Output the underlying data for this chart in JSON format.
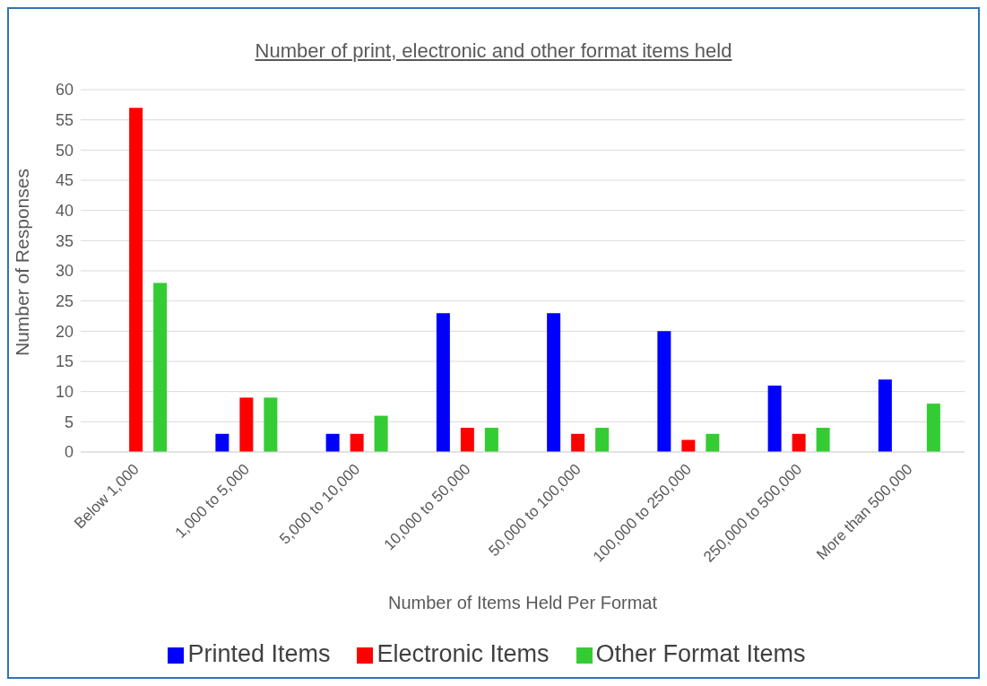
{
  "chart_data": {
    "type": "bar",
    "title": "Number of print, electronic and other format items held",
    "xlabel": "Number of Items Held Per Format",
    "ylabel": "Number of Responses",
    "categories": [
      "Below 1,000",
      "1,000 to 5,000",
      "5,000 to 10,000",
      "10,000 to 50,000",
      "50,000 to 100,000",
      "100,000 to 250,000",
      "250,000 to 500,000",
      "More than 500,000"
    ],
    "series": [
      {
        "name": "Printed Items",
        "color": "#0000ff",
        "values": [
          0,
          3,
          3,
          23,
          23,
          20,
          11,
          12
        ]
      },
      {
        "name": "Electronic Items",
        "color": "#ff0000",
        "values": [
          57,
          9,
          3,
          4,
          3,
          2,
          3,
          0
        ]
      },
      {
        "name": "Other Format Items",
        "color": "#33cc33",
        "values": [
          28,
          9,
          6,
          4,
          4,
          3,
          4,
          8
        ]
      }
    ],
    "ylim": [
      0,
      60
    ],
    "yticks": [
      0,
      5,
      10,
      15,
      20,
      25,
      30,
      35,
      40,
      45,
      50,
      55,
      60
    ],
    "grid": "y",
    "legend": "bottom"
  }
}
